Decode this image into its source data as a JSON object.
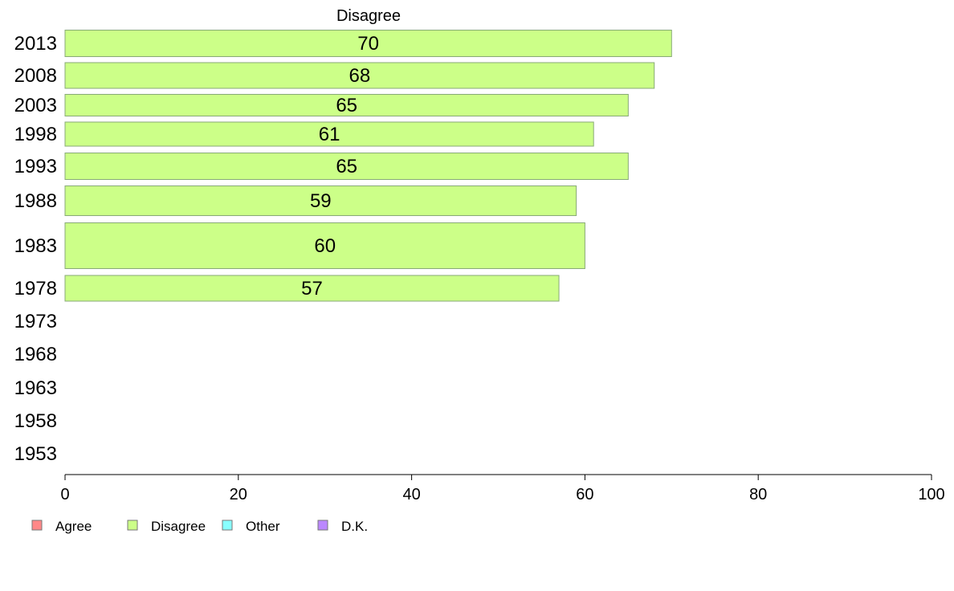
{
  "chart_data": {
    "type": "bar",
    "orientation": "horizontal",
    "title": "Disagree",
    "categories": [
      "2013",
      "2008",
      "2003",
      "1998",
      "1993",
      "1988",
      "1983",
      "1978",
      "1973",
      "1968",
      "1963",
      "1958",
      "1953"
    ],
    "series": [
      {
        "name": "Disagree",
        "color": "#ccff88",
        "values": [
          70,
          68,
          65,
          61,
          65,
          59,
          60,
          57,
          null,
          null,
          null,
          null,
          null
        ],
        "labels": [
          "70",
          "68",
          "65",
          "61",
          "65",
          "59",
          "60",
          "57",
          "",
          "",
          "",
          "",
          ""
        ]
      }
    ],
    "xlim": [
      0,
      100
    ],
    "xticks": [
      "0",
      "20",
      "40",
      "60",
      "80",
      "100"
    ],
    "grid": false,
    "legend": {
      "placement": "bottom-left",
      "entries": [
        {
          "label": "Agree",
          "color": "#ff8888"
        },
        {
          "label": "Disagree",
          "color": "#ccff88"
        },
        {
          "label": "Other",
          "color": "#88ffff"
        },
        {
          "label": "D.K.",
          "color": "#bb88ff"
        }
      ]
    }
  }
}
